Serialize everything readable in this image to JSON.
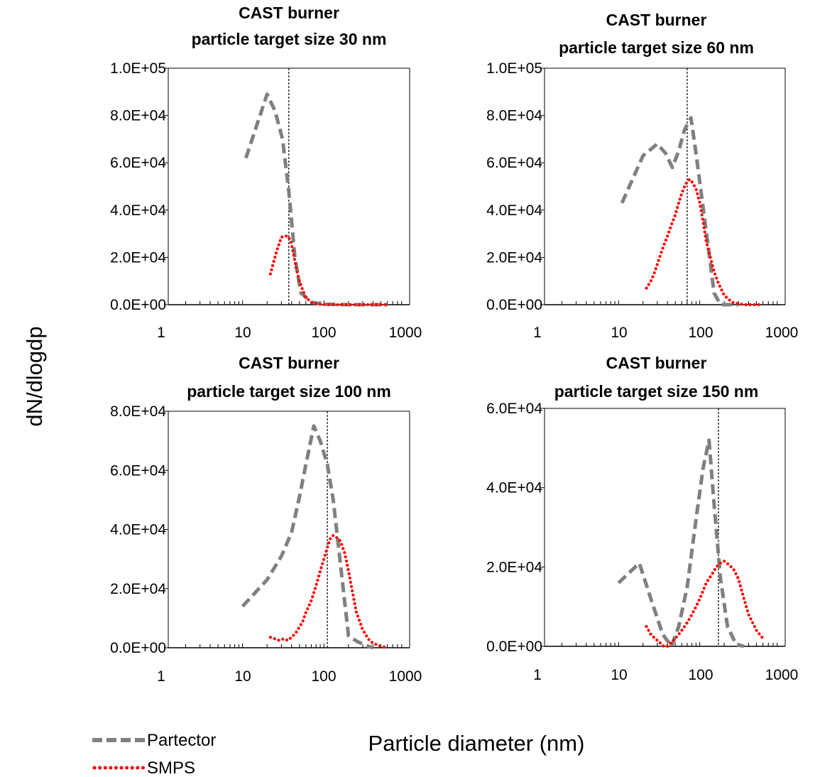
{
  "figure": {
    "ylabel": "dN/dlogdp",
    "xlabel": "Particle diameter (nm)"
  },
  "legend": [
    {
      "name": "Partector",
      "color": "#808080",
      "style": "dashed"
    },
    {
      "name": "SMPS",
      "color": "#ff0000",
      "style": "dotted"
    }
  ],
  "chart_data": [
    {
      "type": "line",
      "title_line1": "CAST burner",
      "title_line2": "particle target size 30 nm",
      "xscale": "log",
      "xlim": [
        1,
        1000
      ],
      "xticks": [
        "1",
        "10",
        "100",
        "1000"
      ],
      "ylim": [
        0,
        100000
      ],
      "yticks": [
        "0.0E+00",
        "2.0E+04",
        "4.0E+04",
        "6.0E+04",
        "8.0E+04",
        "1.0E+05"
      ],
      "target_line": 37,
      "series": [
        {
          "name": "Partector",
          "x": [
            11,
            20,
            25,
            31,
            37,
            44,
            52,
            70,
            100,
            200,
            600
          ],
          "y": [
            62000,
            89000,
            82000,
            70000,
            48000,
            20000,
            5000,
            1000,
            200,
            0,
            0
          ]
        },
        {
          "name": "SMPS",
          "x": [
            22,
            24,
            27,
            30,
            33,
            36,
            39,
            42,
            46,
            50,
            55,
            60,
            70,
            80,
            100,
            150,
            250,
            400,
            600
          ],
          "y": [
            13000,
            18000,
            24000,
            28500,
            29000,
            29000,
            27000,
            22000,
            15000,
            10000,
            6000,
            3000,
            1000,
            400,
            100,
            0,
            0,
            0,
            0
          ]
        }
      ]
    },
    {
      "type": "line",
      "title_line1": "CAST burner",
      "title_line2": "particle target size 60 nm",
      "xscale": "log",
      "xlim": [
        1,
        1000
      ],
      "xticks": [
        "1",
        "10",
        "100",
        "1000"
      ],
      "ylim": [
        0,
        100000
      ],
      "yticks": [
        "0.0E+00",
        "2.0E+04",
        "4.0E+04",
        "6.0E+04",
        "8.0E+04",
        "1.0E+05"
      ],
      "target_line": 70,
      "series": [
        {
          "name": "Partector",
          "x": [
            11,
            20,
            30,
            38,
            46,
            55,
            65,
            78,
            90,
            110,
            130,
            150,
            180,
            300
          ],
          "y": [
            43000,
            63000,
            68000,
            64000,
            58000,
            65000,
            74000,
            79000,
            64000,
            41000,
            22000,
            5000,
            0,
            0
          ]
        },
        {
          "name": "SMPS",
          "x": [
            22,
            25,
            28,
            32,
            36,
            40,
            45,
            50,
            55,
            60,
            65,
            70,
            75,
            80,
            90,
            100,
            110,
            120,
            135,
            150,
            170,
            200,
            250,
            350,
            600
          ],
          "y": [
            7000,
            10000,
            14000,
            20000,
            25000,
            29000,
            34000,
            38000,
            43000,
            47000,
            50000,
            52000,
            53000,
            52000,
            49000,
            43000,
            35000,
            27000,
            20000,
            14000,
            9000,
            4000,
            1000,
            0,
            0
          ]
        }
      ]
    },
    {
      "type": "line",
      "title_line1": "CAST burner",
      "title_line2": "particle target size 100 nm",
      "xscale": "log",
      "xlim": [
        1,
        1000
      ],
      "xticks": [
        "1",
        "10",
        "100",
        "1000"
      ],
      "ylim": [
        0,
        80000
      ],
      "yticks": [
        "0.0E+00",
        "2.0E+04",
        "4.0E+04",
        "6.0E+04",
        "8.0E+04"
      ],
      "target_line": 110,
      "series": [
        {
          "name": "Partector",
          "x": [
            10,
            20,
            30,
            40,
            50,
            60,
            75,
            90,
            110,
            130,
            160,
            200,
            260,
            350,
            400
          ],
          "y": [
            14000,
            23000,
            31000,
            39000,
            51000,
            62000,
            75000,
            70000,
            62000,
            50000,
            28000,
            4000,
            2000,
            500,
            0
          ]
        },
        {
          "name": "SMPS",
          "x": [
            22,
            25,
            28,
            32,
            36,
            40,
            45,
            50,
            55,
            60,
            65,
            70,
            80,
            90,
            100,
            110,
            120,
            130,
            140,
            160,
            180,
            200,
            220,
            250,
            300,
            350,
            400,
            500,
            600
          ],
          "y": [
            3500,
            3000,
            2500,
            3000,
            2500,
            3500,
            5000,
            7000,
            9000,
            12000,
            14000,
            16000,
            21000,
            26000,
            30000,
            34000,
            37000,
            38000,
            37500,
            36000,
            32000,
            26000,
            20000,
            12000,
            6000,
            3000,
            1500,
            500,
            0
          ]
        }
      ]
    },
    {
      "type": "line",
      "title_line1": "CAST burner",
      "title_line2": "particle target size 150 nm",
      "xscale": "log",
      "xlim": [
        1,
        1000
      ],
      "xticks": [
        "1",
        "10",
        "100",
        "1000"
      ],
      "ylim": [
        0,
        60000
      ],
      "yticks": [
        "0.0E+00",
        "2.0E+04",
        "4.0E+04",
        "6.0E+04"
      ],
      "target_line": 170,
      "series": [
        {
          "name": "Partector",
          "x": [
            10,
            18,
            25,
            35,
            45,
            55,
            70,
            90,
            110,
            130,
            150,
            180,
            220,
            280,
            350
          ],
          "y": [
            16000,
            21000,
            12000,
            3000,
            0,
            5000,
            15000,
            32000,
            45000,
            52000,
            36000,
            17000,
            5000,
            500,
            0
          ]
        },
        {
          "name": "SMPS",
          "x": [
            22,
            25,
            28,
            32,
            36,
            40,
            45,
            50,
            55,
            60,
            70,
            80,
            90,
            100,
            110,
            120,
            140,
            160,
            180,
            200,
            230,
            260,
            300,
            350,
            400,
            500,
            600
          ],
          "y": [
            5000,
            3000,
            2000,
            1000,
            0,
            0,
            1000,
            2000,
            3000,
            4000,
            6000,
            8000,
            10000,
            12000,
            14000,
            16000,
            18000,
            20000,
            21000,
            21500,
            20500,
            19500,
            17000,
            12000,
            8000,
            4000,
            2000
          ]
        }
      ]
    }
  ]
}
